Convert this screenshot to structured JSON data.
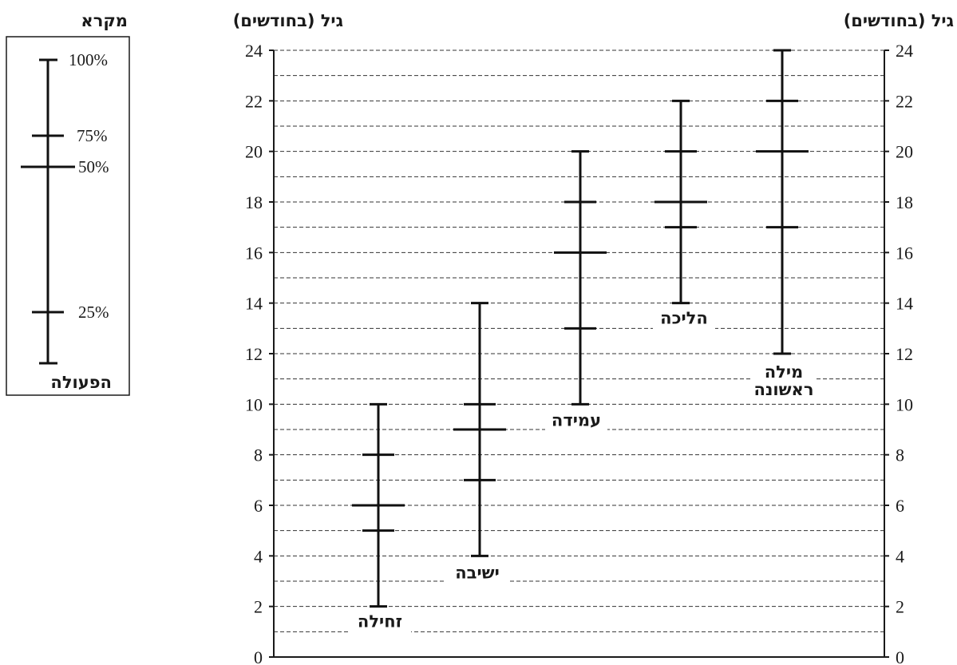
{
  "legend": {
    "title": "מקרא",
    "activity_label": "הפעולה",
    "percentiles": [
      "100%",
      "75%",
      "50%",
      "25%"
    ]
  },
  "chart_data": {
    "type": "box",
    "title": "",
    "ylabel_left": "גיל (בחודשים)",
    "ylabel_right": "גיל (בחודשים)",
    "ylim": [
      0,
      24
    ],
    "yticks": [
      0,
      2,
      4,
      6,
      8,
      10,
      12,
      14,
      16,
      18,
      20,
      22,
      24
    ],
    "grid": true,
    "legend_position": "left",
    "series": [
      {
        "name": "זחילה",
        "min": 2,
        "q1": 5,
        "median": 6,
        "q3": 8,
        "max": 10
      },
      {
        "name": "ישיבה",
        "min": 4,
        "q1": 7,
        "median": 9,
        "q3": 10,
        "max": 14
      },
      {
        "name": "עמידה",
        "min": 10,
        "q1": 13,
        "median": 16,
        "q3": 18,
        "max": 20
      },
      {
        "name": "הליכה",
        "min": 14,
        "q1": 17,
        "median": 18,
        "q3": 20,
        "max": 22
      },
      {
        "name": "מילה ראשונה",
        "min": 12,
        "q1": 17,
        "median": 20,
        "q3": 22,
        "max": 24
      }
    ]
  }
}
